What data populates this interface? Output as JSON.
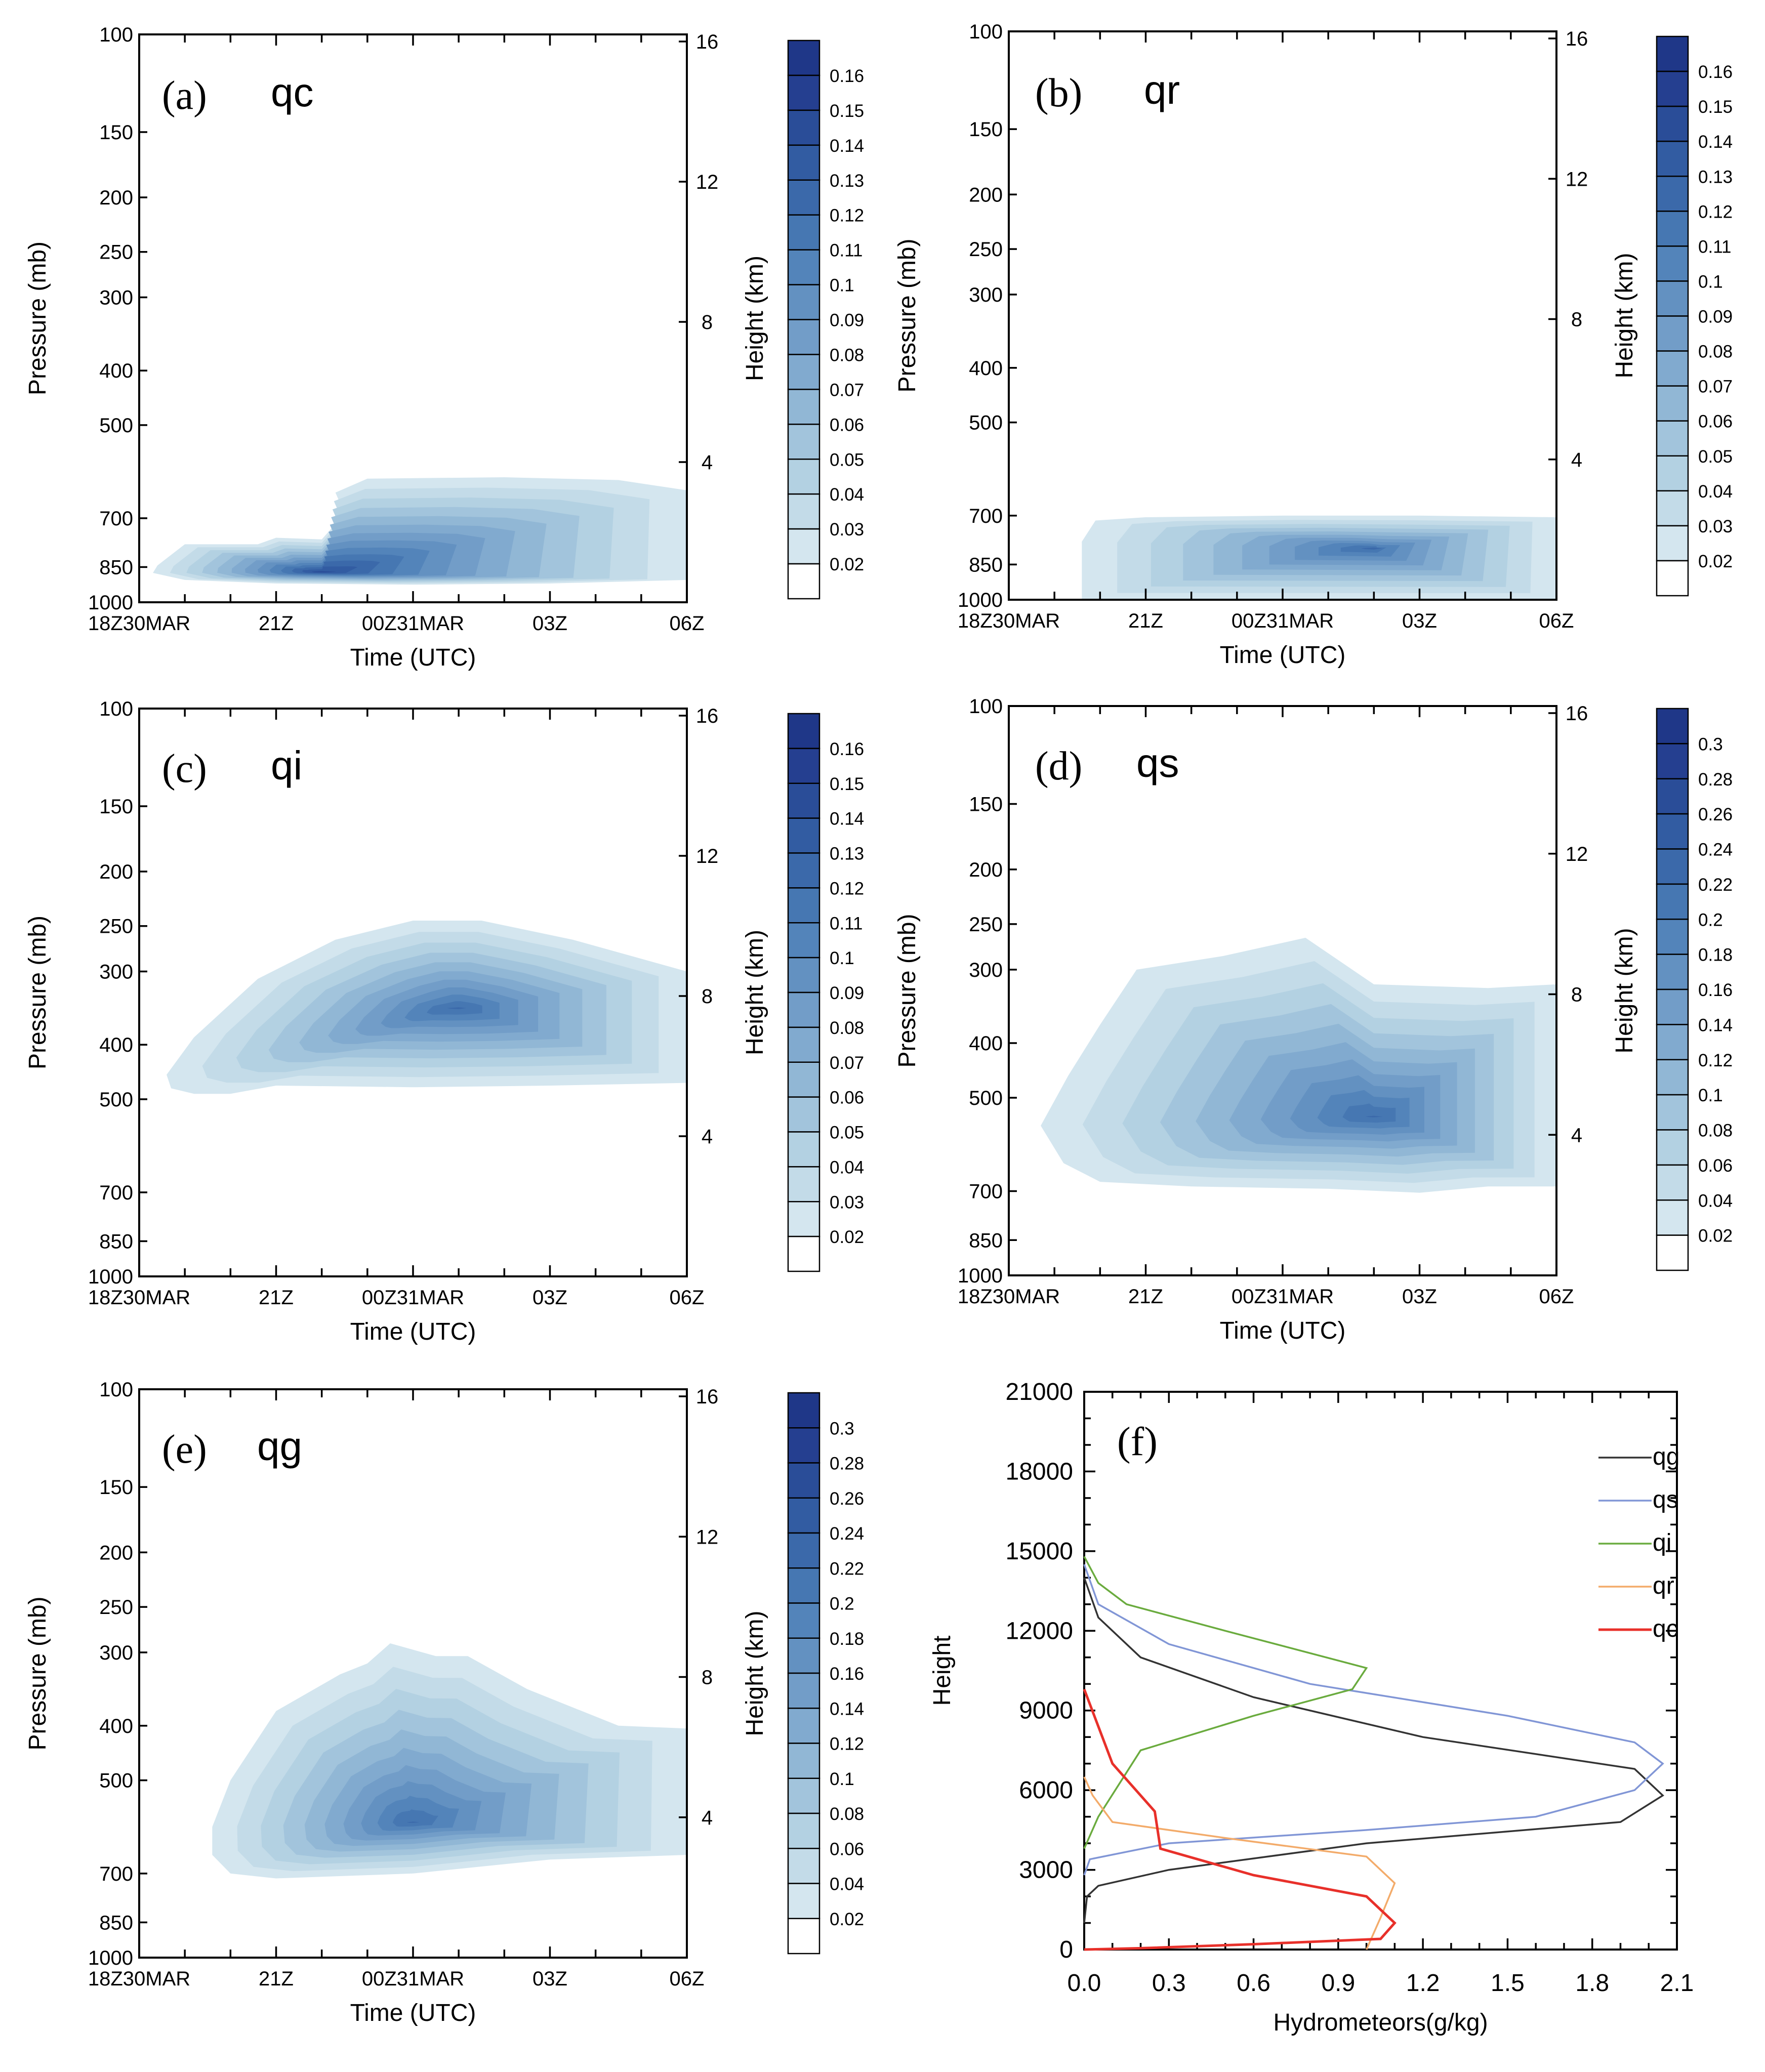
{
  "chart_data": [
    {
      "id": "a",
      "type": "contour",
      "panel_label": "(a)",
      "variable": "qc",
      "xlabel": "Time (UTC)",
      "ylabel": "Pressure (mb)",
      "y2label": "Height (km)",
      "x_ticks": [
        "18Z30MAR",
        "21Z",
        "00Z31MAR",
        "03Z",
        "06Z"
      ],
      "y_ticks": [
        100,
        150,
        200,
        250,
        300,
        400,
        500,
        700,
        850,
        1000
      ],
      "y2_ticks": [
        4,
        8,
        12,
        16
      ],
      "ylim": [
        1000,
        100
      ],
      "xlim": [
        0,
        12
      ],
      "colorbar": {
        "levels": [
          "0.16",
          "0.15",
          "0.14",
          "0.13",
          "0.12",
          "0.11",
          "0.1",
          "0.09",
          "0.08",
          "0.07",
          "0.06",
          "0.05",
          "0.04",
          "0.03",
          "0.02"
        ],
        "colors": [
          "#253f90",
          "#2a4d98",
          "#325ca2",
          "#3b69aa",
          "#4677b2",
          "#5384ba",
          "#6391c1",
          "#729dc8",
          "#81aacf",
          "#91b7d5",
          "#a2c4dc",
          "#b3d1e2",
          "#c3dbe8",
          "#d4e6ef",
          "#ffffff"
        ]
      },
      "peak": {
        "time_h": 4,
        "pressure": 870,
        "value": 0.15
      }
    },
    {
      "id": "b",
      "type": "contour",
      "panel_label": "(b)",
      "variable": "qr",
      "xlabel": "Time (UTC)",
      "ylabel": "Pressure (mb)",
      "y2label": "Height (km)",
      "x_ticks": [
        "18Z30MAR",
        "21Z",
        "00Z31MAR",
        "03Z",
        "06Z"
      ],
      "y_ticks": [
        100,
        150,
        200,
        250,
        300,
        400,
        500,
        700,
        850,
        1000
      ],
      "y2_ticks": [
        4,
        8,
        12,
        16
      ],
      "ylim": [
        1000,
        100
      ],
      "xlim": [
        0,
        12
      ],
      "colorbar": {
        "levels": [
          "0.16",
          "0.15",
          "0.14",
          "0.13",
          "0.12",
          "0.11",
          "0.1",
          "0.09",
          "0.08",
          "0.07",
          "0.06",
          "0.05",
          "0.04",
          "0.03",
          "0.02"
        ],
        "colors": [
          "#253f90",
          "#2a4d98",
          "#325ca2",
          "#3b69aa",
          "#4677b2",
          "#5384ba",
          "#6391c1",
          "#729dc8",
          "#81aacf",
          "#91b7d5",
          "#a2c4dc",
          "#b3d1e2",
          "#c3dbe8",
          "#d4e6ef",
          "#ffffff"
        ]
      },
      "peak": {
        "time_h": 8,
        "pressure": 800,
        "value": 0.13
      }
    },
    {
      "id": "c",
      "type": "contour",
      "panel_label": "(c)",
      "variable": "qi",
      "xlabel": "Time (UTC)",
      "ylabel": "Pressure (mb)",
      "y2label": "Height (km)",
      "x_ticks": [
        "18Z30MAR",
        "21Z",
        "00Z31MAR",
        "03Z",
        "06Z"
      ],
      "y_ticks": [
        100,
        150,
        200,
        250,
        300,
        400,
        500,
        700,
        850,
        1000
      ],
      "y2_ticks": [
        4,
        8,
        12,
        16
      ],
      "ylim": [
        1000,
        100
      ],
      "xlim": [
        0,
        12
      ],
      "colorbar": {
        "levels": [
          "0.16",
          "0.15",
          "0.14",
          "0.13",
          "0.12",
          "0.11",
          "0.1",
          "0.09",
          "0.08",
          "0.07",
          "0.06",
          "0.05",
          "0.04",
          "0.03",
          "0.02"
        ],
        "colors": [
          "#253f90",
          "#2a4d98",
          "#325ca2",
          "#3b69aa",
          "#4677b2",
          "#5384ba",
          "#6391c1",
          "#729dc8",
          "#81aacf",
          "#91b7d5",
          "#a2c4dc",
          "#b3d1e2",
          "#c3dbe8",
          "#d4e6ef",
          "#ffffff"
        ]
      },
      "peak": {
        "time_h": 7,
        "pressure": 350,
        "value": 0.13
      }
    },
    {
      "id": "d",
      "type": "contour",
      "panel_label": "(d)",
      "variable": "qs",
      "xlabel": "Time (UTC)",
      "ylabel": "Pressure (mb)",
      "y2label": "Height (km)",
      "x_ticks": [
        "18Z30MAR",
        "21Z",
        "00Z31MAR",
        "03Z",
        "06Z"
      ],
      "y_ticks": [
        100,
        150,
        200,
        250,
        300,
        400,
        500,
        700,
        850,
        1000
      ],
      "y2_ticks": [
        4,
        8,
        12,
        16
      ],
      "ylim": [
        1000,
        100
      ],
      "xlim": [
        0,
        12
      ],
      "colorbar": {
        "levels": [
          "0.3",
          "0.28",
          "0.26",
          "0.24",
          "0.22",
          "0.2",
          "0.18",
          "0.16",
          "0.14",
          "0.12",
          "0.1",
          "0.08",
          "0.06",
          "0.04",
          "0.02"
        ],
        "colors": [
          "#253f90",
          "#2a4d98",
          "#325ca2",
          "#3b69aa",
          "#4677b2",
          "#5384ba",
          "#6391c1",
          "#729dc8",
          "#81aacf",
          "#91b7d5",
          "#a2c4dc",
          "#b3d1e2",
          "#c3dbe8",
          "#d4e6ef",
          "#ffffff"
        ]
      },
      "peak": {
        "time_h": 8,
        "pressure": 540,
        "value": 0.24
      }
    },
    {
      "id": "e",
      "type": "contour",
      "panel_label": "(e)",
      "variable": "qg",
      "xlabel": "Time (UTC)",
      "ylabel": "Pressure (mb)",
      "y2label": "Height (km)",
      "x_ticks": [
        "18Z30MAR",
        "21Z",
        "00Z31MAR",
        "03Z",
        "06Z"
      ],
      "y_ticks": [
        100,
        150,
        200,
        250,
        300,
        400,
        500,
        700,
        850,
        1000
      ],
      "y2_ticks": [
        4,
        8,
        12,
        16
      ],
      "ylim": [
        1000,
        100
      ],
      "xlim": [
        0,
        12
      ],
      "colorbar": {
        "levels": [
          "0.3",
          "0.28",
          "0.26",
          "0.24",
          "0.22",
          "0.2",
          "0.18",
          "0.16",
          "0.14",
          "0.12",
          "0.1",
          "0.08",
          "0.06",
          "0.04",
          "0.02"
        ],
        "colors": [
          "#253f90",
          "#2a4d98",
          "#325ca2",
          "#3b69aa",
          "#4677b2",
          "#5384ba",
          "#6391c1",
          "#729dc8",
          "#81aacf",
          "#91b7d5",
          "#a2c4dc",
          "#b3d1e2",
          "#c3dbe8",
          "#d4e6ef",
          "#ffffff"
        ]
      },
      "peak": {
        "time_h": 6,
        "pressure": 590,
        "value": 0.24
      }
    },
    {
      "id": "f",
      "type": "line",
      "panel_label": "(f)",
      "xlabel": "Hydrometeors(g/kg)",
      "ylabel": "Height",
      "xlim": [
        0,
        2.1
      ],
      "ylim": [
        0,
        21000
      ],
      "x_ticks": [
        "0.0",
        "0.3",
        "0.6",
        "0.9",
        "1.2",
        "1.5",
        "1.8",
        "2.1"
      ],
      "y_ticks": [
        "0",
        "3000",
        "6000",
        "9000",
        "12000",
        "15000",
        "18000",
        "21000"
      ],
      "legend": "top-right",
      "series": [
        {
          "name": "qg",
          "color": "#333333",
          "x": [
            0,
            0.01,
            0.05,
            0.3,
            1.0,
            1.9,
            2.05,
            1.95,
            1.2,
            0.6,
            0.2,
            0.05,
            0
          ],
          "y": [
            1000,
            2000,
            2400,
            3000,
            4000,
            4800,
            5800,
            6800,
            8000,
            9500,
            11000,
            12500,
            14000
          ]
        },
        {
          "name": "qs",
          "color": "#8196d6",
          "x": [
            0,
            0.02,
            0.3,
            1.0,
            1.6,
            1.95,
            2.05,
            1.95,
            1.5,
            0.8,
            0.3,
            0.05,
            0
          ],
          "y": [
            2800,
            3400,
            4000,
            4500,
            5000,
            6000,
            7000,
            7800,
            8800,
            10000,
            11500,
            13000,
            14500
          ]
        },
        {
          "name": "qi",
          "color": "#6aab3e",
          "x": [
            0,
            0.05,
            0.2,
            0.6,
            0.95,
            1.0,
            0.5,
            0.15,
            0.05,
            0
          ],
          "y": [
            3800,
            5000,
            7500,
            8800,
            9800,
            10600,
            12000,
            13000,
            13800,
            14800
          ]
        },
        {
          "name": "qr",
          "color": "#f3ab6a",
          "x": [
            0,
            0.03,
            0.1,
            0.5,
            1.0,
            1.1,
            1.05,
            1.0
          ],
          "y": [
            6500,
            5800,
            4800,
            4200,
            3500,
            2500,
            1200,
            0
          ]
        },
        {
          "name": "qc",
          "color": "#e8302a",
          "x": [
            0,
            0.1,
            0.25,
            0.27,
            0.6,
            1.0,
            1.1,
            1.05,
            0.6,
            0.2,
            0
          ],
          "y": [
            9800,
            7000,
            5200,
            3800,
            2800,
            2000,
            1000,
            400,
            200,
            50,
            0
          ]
        }
      ]
    }
  ]
}
